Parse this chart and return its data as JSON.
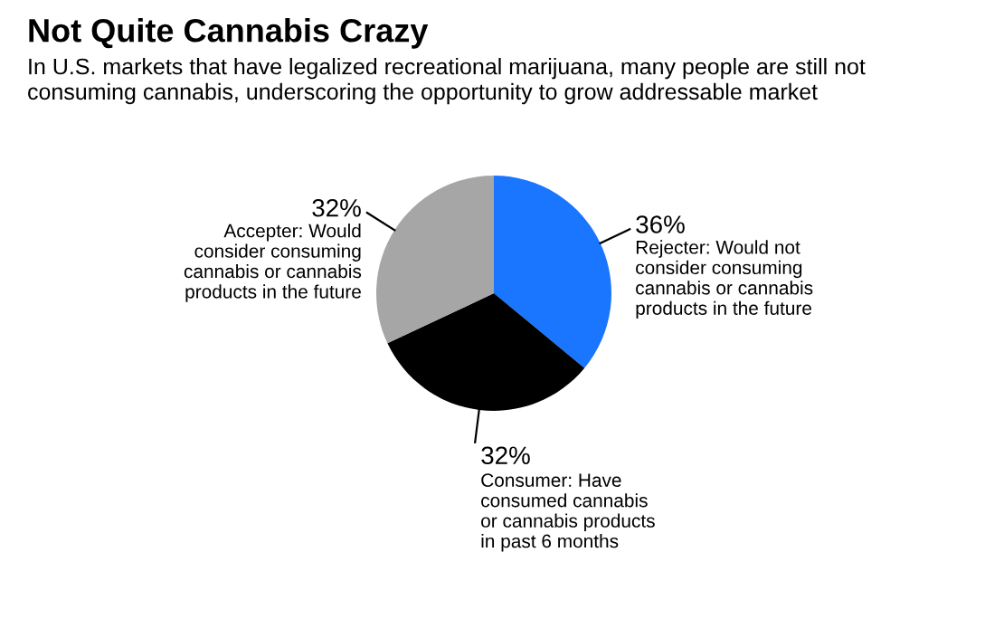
{
  "chart_data": {
    "type": "pie",
    "title": "Not Quite Cannabis Crazy",
    "subtitle": "In U.S. markets that have legalized recreational marijuana, many people are still not\nconsuming cannabis, underscoring the opportunity to grow addressable market",
    "categories": [
      "Rejecter: Would not\nconsider consuming\ncannabis or cannabis\nproducts in the future",
      "Consumer: Have\nconsumed cannabis\nor cannabis products\nin past 6 months",
      "Accepter: Would\nconsider consuming\ncannabis or cannabis\nproducts in the future"
    ],
    "values": [
      36,
      32,
      32
    ],
    "colors": [
      "#1a75ff",
      "#000000",
      "#a6a6a6"
    ],
    "value_labels": [
      "36%",
      "32%",
      "32%"
    ]
  }
}
